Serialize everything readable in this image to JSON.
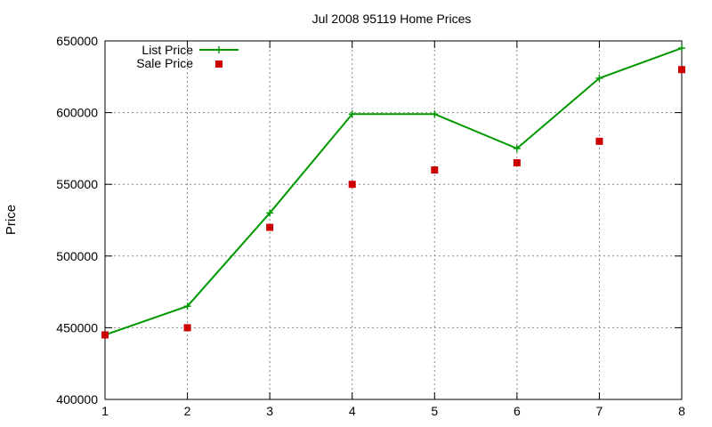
{
  "chart_data": {
    "type": "line",
    "title": "Jul 2008 95119 Home Prices",
    "xlabel": "",
    "ylabel": "Price",
    "xlim": [
      1,
      8
    ],
    "ylim": [
      400000,
      650000
    ],
    "x_ticks": [
      1,
      2,
      3,
      4,
      5,
      6,
      7,
      8
    ],
    "y_ticks": [
      400000,
      450000,
      500000,
      550000,
      600000,
      650000
    ],
    "grid": true,
    "legend_position": "top-left",
    "series": [
      {
        "name": "List Price",
        "style": "line-with-plus-markers",
        "color": "#009900",
        "x": [
          1,
          2,
          3,
          4,
          5,
          6,
          7,
          8
        ],
        "y": [
          445000,
          465000,
          530000,
          599000,
          599000,
          575000,
          624000,
          645000
        ]
      },
      {
        "name": "Sale Price",
        "style": "square-markers",
        "color": "#cc0000",
        "x": [
          1,
          2,
          3,
          4,
          5,
          6,
          7,
          8
        ],
        "y": [
          445000,
          450000,
          520000,
          550000,
          560000,
          565000,
          580000,
          630000
        ]
      }
    ]
  }
}
